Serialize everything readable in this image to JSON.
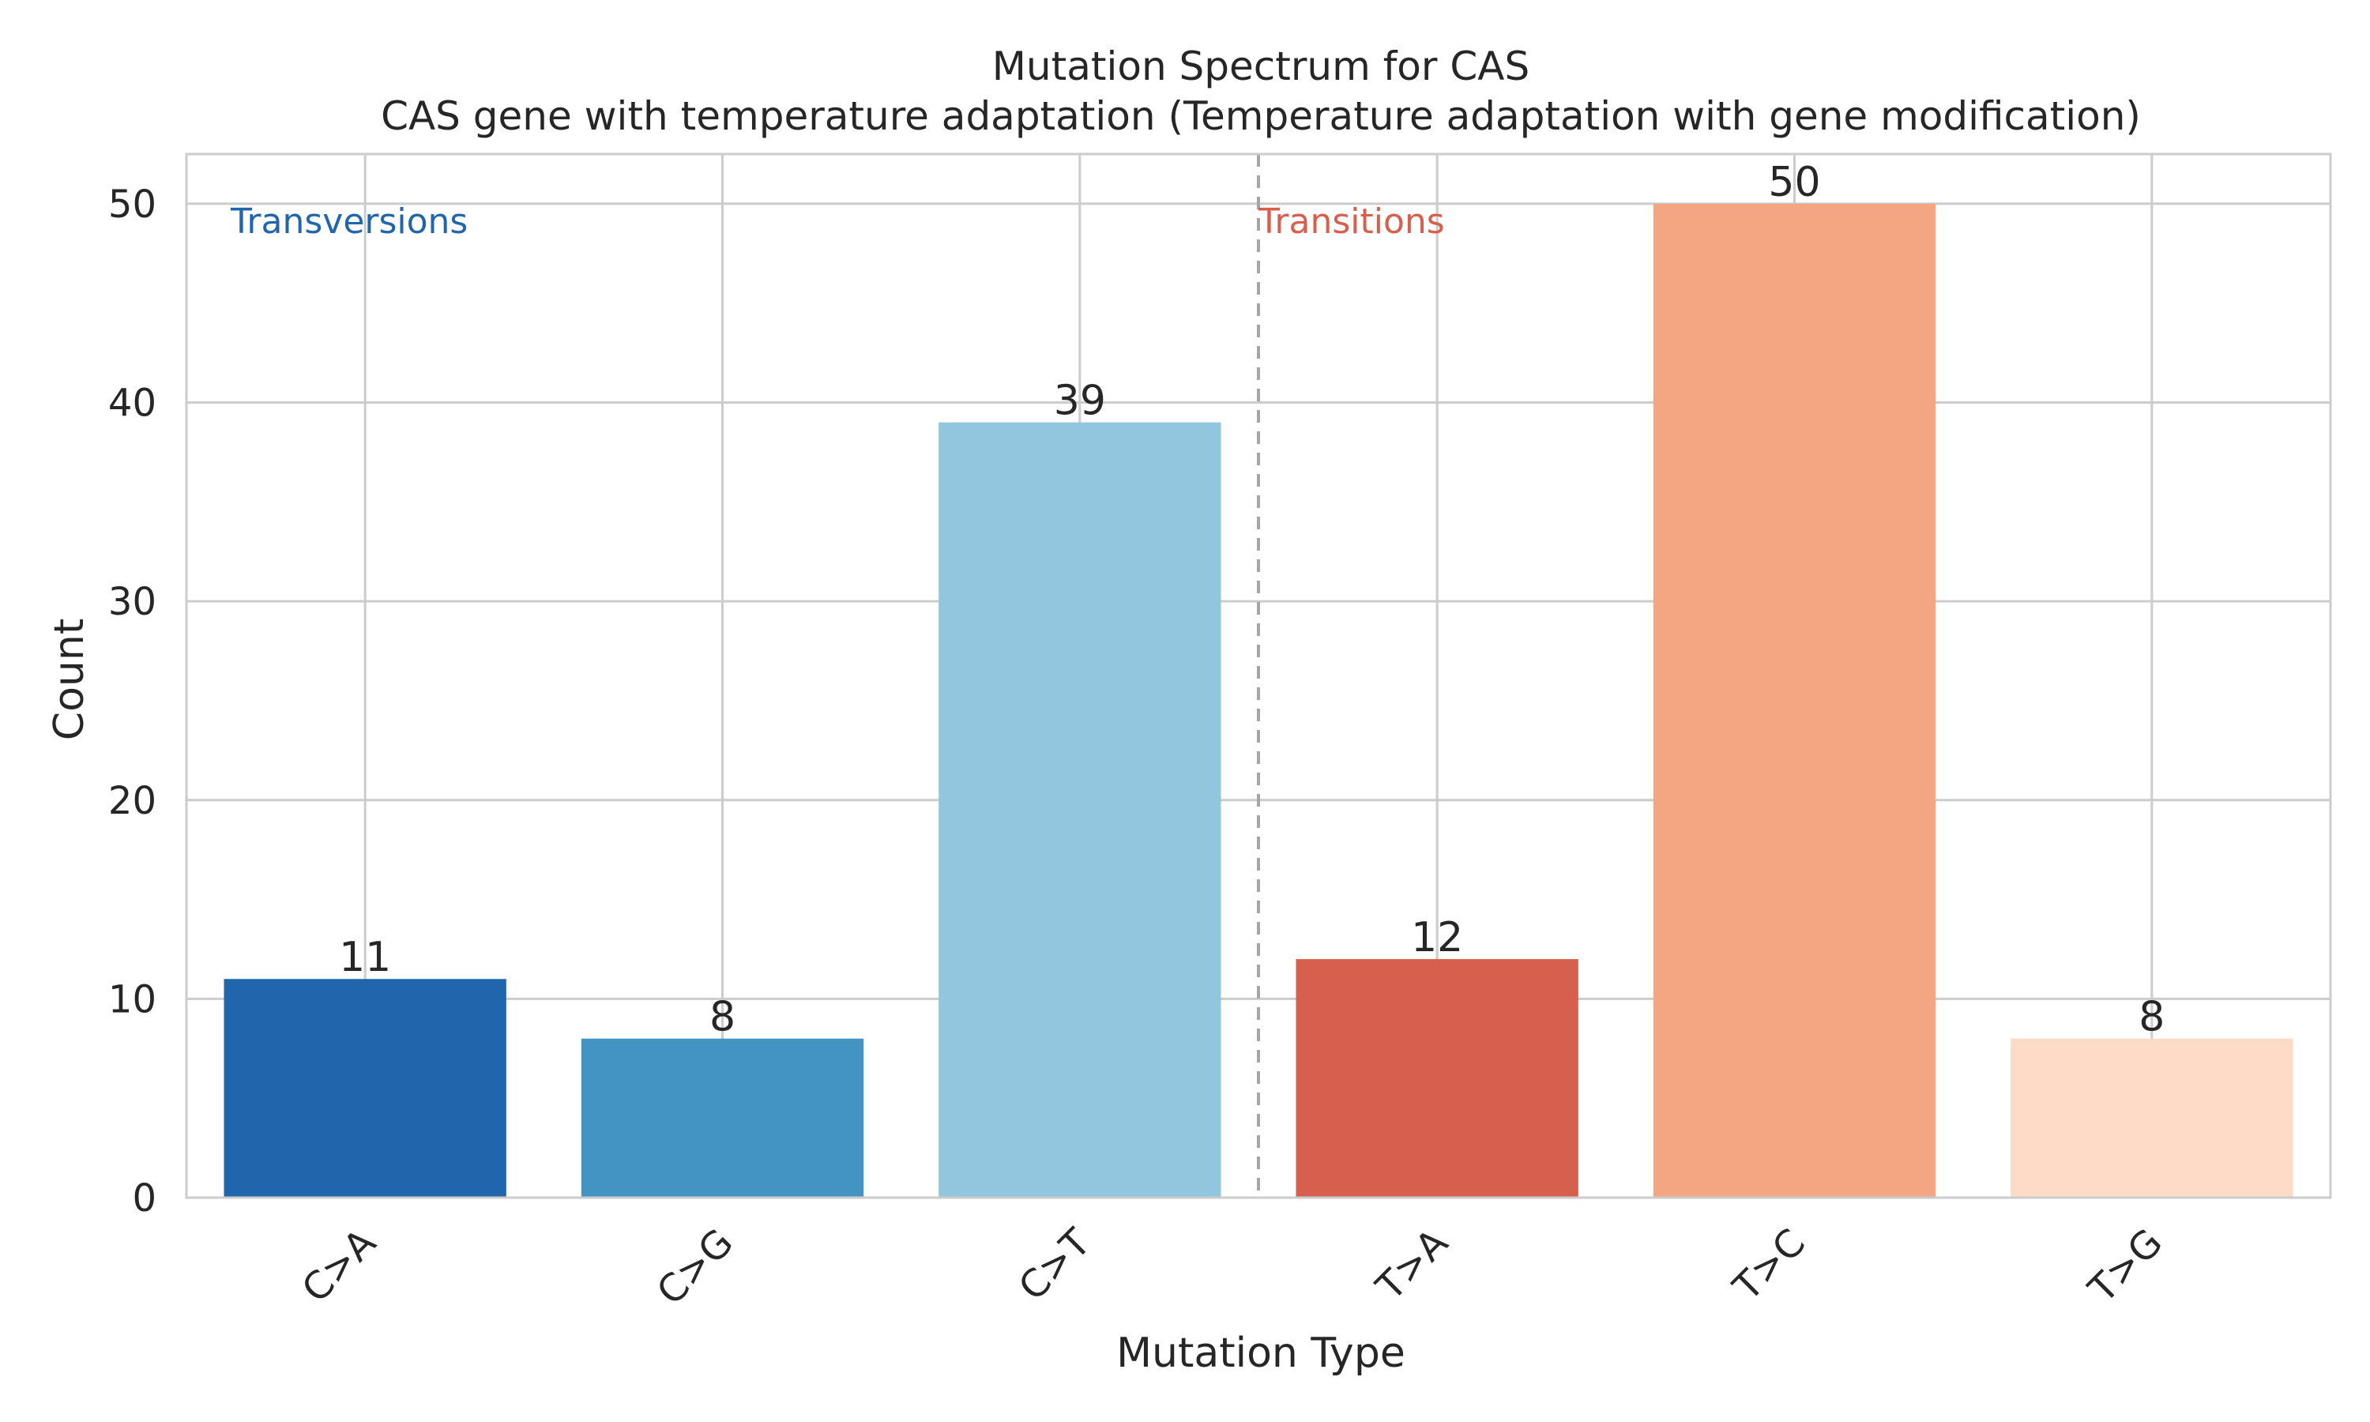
{
  "chart_data": {
    "type": "bar",
    "title": "Mutation Spectrum for CAS",
    "subtitle": "CAS gene with temperature adaptation (Temperature adaptation with gene modification)",
    "xlabel": "Mutation Type",
    "ylabel": "Count",
    "categories": [
      "C>A",
      "C>G",
      "C>T",
      "T>A",
      "T>C",
      "T>G"
    ],
    "values": [
      11,
      8,
      39,
      12,
      50,
      8
    ],
    "bar_colors": [
      "#2166ac",
      "#4393c3",
      "#92c5de",
      "#d6604d",
      "#f4a582",
      "#fddbc7"
    ],
    "ylim": [
      0,
      52.5
    ],
    "yticks": [
      0,
      10,
      20,
      30,
      40,
      50
    ],
    "grid": true,
    "divider_after_category_index": 2,
    "annotations": [
      {
        "text": "Transversions",
        "color": "#2166ac",
        "position": "top-left"
      },
      {
        "text": "Transitions",
        "color": "#d6604d",
        "position": "top-after-divider"
      }
    ]
  }
}
